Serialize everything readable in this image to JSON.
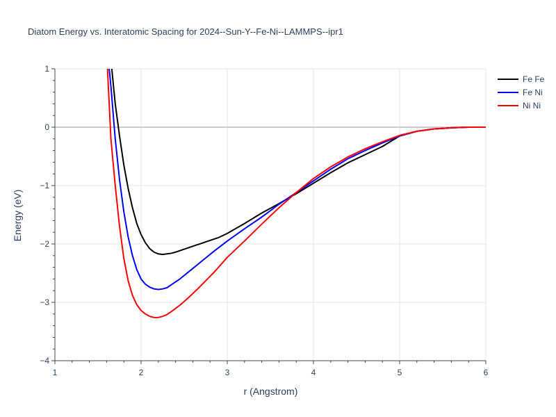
{
  "chart_data": {
    "type": "line",
    "title": "Diatom Energy vs. Interatomic Spacing for 2024--Sun-Y--Fe-Ni--LAMMPS--ipr1",
    "xlabel": "r (Angstrom)",
    "ylabel": "Energy (eV)",
    "xlim": [
      1,
      6
    ],
    "ylim": [
      -4,
      1
    ],
    "xticks": [
      1,
      2,
      3,
      4,
      5,
      6
    ],
    "xtick_labels": [
      "1",
      "2",
      "3",
      "4",
      "5",
      "6"
    ],
    "yticks": [
      1,
      0,
      -1,
      -2,
      -3,
      -4
    ],
    "ytick_labels": [
      "1",
      "0",
      "−1",
      "−2",
      "−3",
      "−4"
    ],
    "grid": true,
    "legend_position": "top-right",
    "series": [
      {
        "name": "Fe Fe",
        "color": "#000000",
        "x": [
          1.66,
          1.7,
          1.75,
          1.8,
          1.85,
          1.9,
          1.95,
          2.0,
          2.05,
          2.1,
          2.15,
          2.2,
          2.25,
          2.3,
          2.35,
          2.4,
          2.5,
          2.6,
          2.7,
          2.8,
          2.9,
          3.0,
          3.2,
          3.4,
          3.6,
          3.8,
          4.0,
          4.2,
          4.4,
          4.6,
          4.8,
          5.0,
          5.2,
          5.4,
          5.6,
          5.8,
          6.0
        ],
        "y": [
          1.0,
          0.4,
          -0.15,
          -0.65,
          -1.05,
          -1.38,
          -1.65,
          -1.84,
          -1.98,
          -2.08,
          -2.14,
          -2.17,
          -2.18,
          -2.17,
          -2.16,
          -2.14,
          -2.09,
          -2.04,
          -1.99,
          -1.94,
          -1.89,
          -1.82,
          -1.65,
          -1.47,
          -1.31,
          -1.14,
          -0.96,
          -0.78,
          -0.61,
          -0.47,
          -0.33,
          -0.15,
          -0.07,
          -0.03,
          -0.01,
          0.0,
          0.0
        ]
      },
      {
        "name": "Fe Ni",
        "color": "#0000ff",
        "x": [
          1.63,
          1.65,
          1.7,
          1.75,
          1.8,
          1.85,
          1.9,
          1.95,
          2.0,
          2.05,
          2.1,
          2.15,
          2.2,
          2.25,
          2.3,
          2.35,
          2.45,
          2.55,
          2.65,
          2.75,
          2.85,
          3.0,
          3.2,
          3.4,
          3.6,
          3.8,
          4.0,
          4.2,
          4.4,
          4.6,
          4.8,
          5.0,
          5.2,
          5.4,
          5.6,
          5.8,
          6.0
        ],
        "y": [
          1.0,
          0.7,
          -0.2,
          -0.9,
          -1.45,
          -1.88,
          -2.2,
          -2.44,
          -2.6,
          -2.69,
          -2.74,
          -2.77,
          -2.78,
          -2.77,
          -2.75,
          -2.7,
          -2.6,
          -2.48,
          -2.36,
          -2.24,
          -2.12,
          -1.95,
          -1.74,
          -1.54,
          -1.32,
          -1.12,
          -0.92,
          -0.72,
          -0.54,
          -0.4,
          -0.27,
          -0.15,
          -0.07,
          -0.03,
          -0.01,
          0.0,
          0.0
        ]
      },
      {
        "name": "Ni Ni",
        "color": "#ff0000",
        "x": [
          1.61,
          1.63,
          1.65,
          1.7,
          1.75,
          1.8,
          1.85,
          1.9,
          1.95,
          2.0,
          2.05,
          2.1,
          2.15,
          2.2,
          2.25,
          2.3,
          2.35,
          2.45,
          2.55,
          2.65,
          2.75,
          2.85,
          3.0,
          3.2,
          3.4,
          3.6,
          3.8,
          4.0,
          4.2,
          4.4,
          4.6,
          4.8,
          5.0,
          5.2,
          5.4,
          5.6,
          5.8,
          6.0
        ],
        "y": [
          1.0,
          0.4,
          -0.2,
          -1.0,
          -1.7,
          -2.25,
          -2.63,
          -2.88,
          -3.04,
          -3.14,
          -3.2,
          -3.24,
          -3.26,
          -3.26,
          -3.24,
          -3.21,
          -3.16,
          -3.05,
          -2.92,
          -2.78,
          -2.63,
          -2.48,
          -2.23,
          -1.95,
          -1.66,
          -1.38,
          -1.12,
          -0.88,
          -0.68,
          -0.51,
          -0.37,
          -0.25,
          -0.14,
          -0.07,
          -0.03,
          -0.01,
          0.0,
          0.0
        ]
      }
    ]
  }
}
